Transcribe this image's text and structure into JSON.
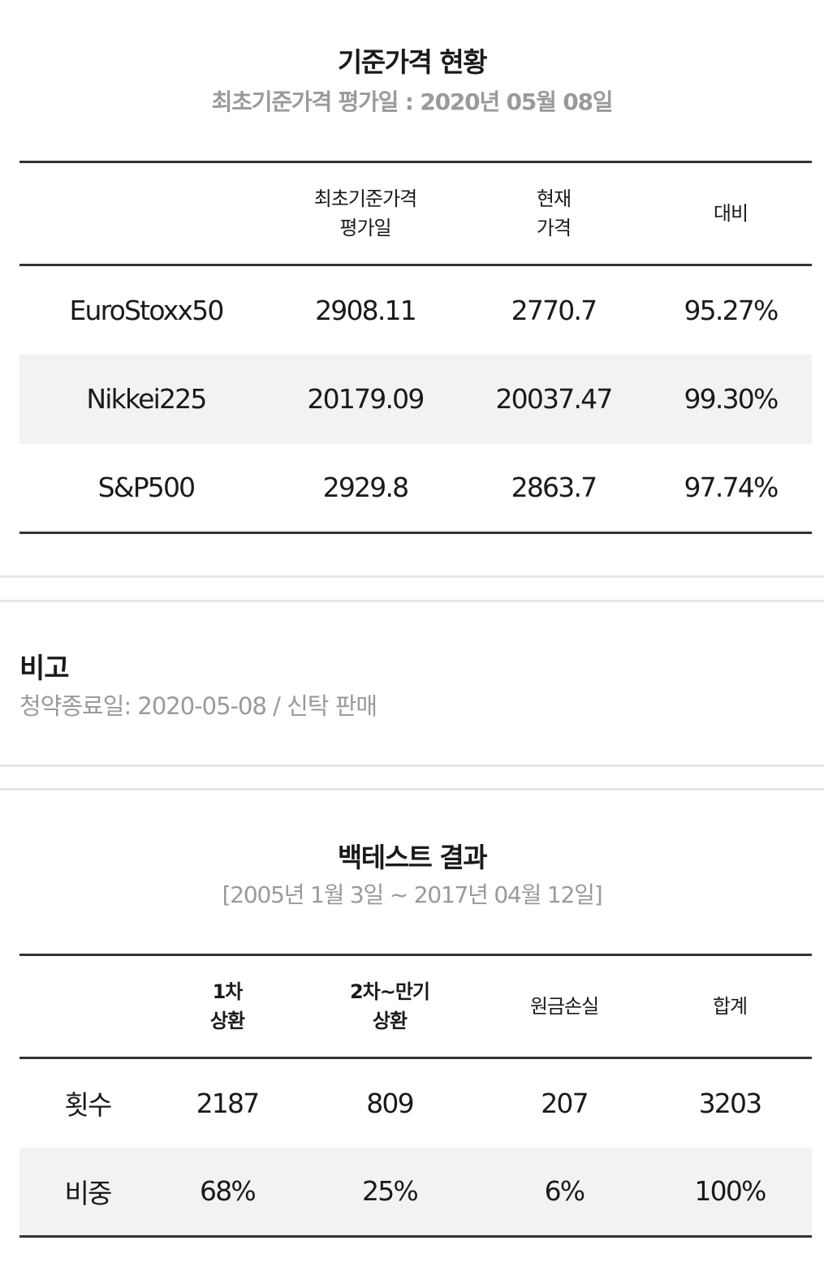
{
  "base_price": {
    "title": "기준가격 현황",
    "subtitle": "최초기준가격 평가일 : 2020년 05월 08일",
    "headers": {
      "col1_line1": "최초기준가격",
      "col1_line2": "평가일",
      "col2_line1": "현재",
      "col2_line2": "가격",
      "col3": "대비"
    },
    "rows": [
      {
        "name": "EuroStoxx50",
        "initial": "2908.11",
        "current": "2770.7",
        "ratio": "95.27%"
      },
      {
        "name": "Nikkei225",
        "initial": "20179.09",
        "current": "20037.47",
        "ratio": "99.30%"
      },
      {
        "name": "S&P500",
        "initial": "2929.8",
        "current": "2863.7",
        "ratio": "97.74%"
      }
    ]
  },
  "remarks": {
    "title": "비고",
    "text": "청약종료일: 2020-05-08 / 신탁 판매"
  },
  "backtest": {
    "title": "백테스트 결과",
    "subtitle": "[2005년 1월 3일 ~ 2017년 04월 12일]",
    "headers": {
      "col1_line1": "1차",
      "col1_line2": "상환",
      "col2_line1": "2차~만기",
      "col2_line2": "상환",
      "col3": "원금손실",
      "col4": "합계"
    },
    "rows": [
      {
        "label": "횟수",
        "first": "2187",
        "second": "809",
        "loss": "207",
        "total": "3203"
      },
      {
        "label": "비중",
        "first": "68%",
        "second": "25%",
        "loss": "6%",
        "total": "100%"
      }
    ]
  }
}
